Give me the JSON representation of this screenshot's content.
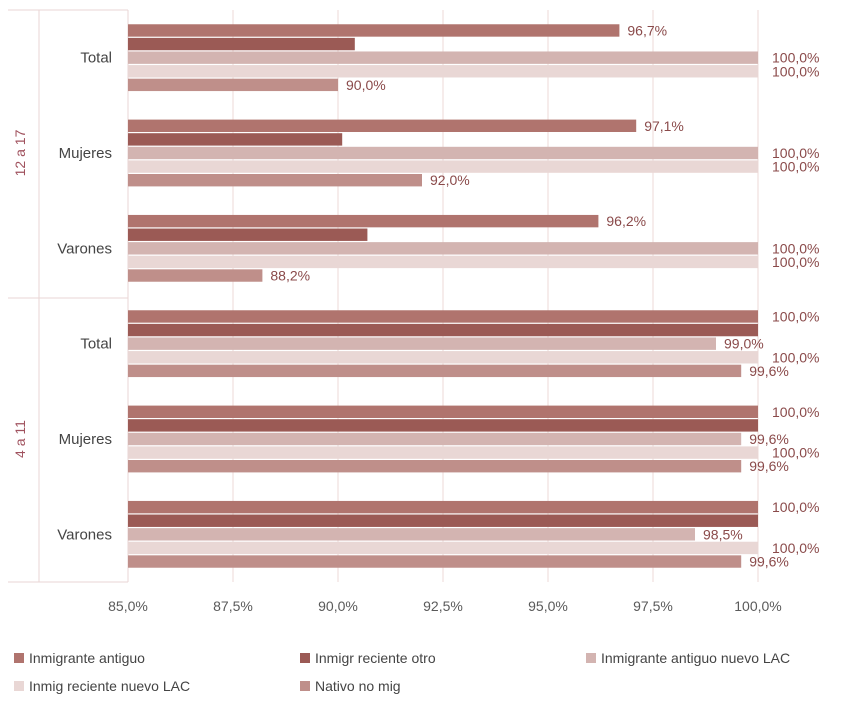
{
  "chart_data": {
    "type": "bar",
    "orientation": "horizontal",
    "groups": [
      {
        "label": "12 a 17",
        "categories": [
          "Total",
          "Mujeres",
          "Varones"
        ]
      },
      {
        "label": "4 a 11",
        "categories": [
          "Total",
          "Mujeres",
          "Varones"
        ]
      }
    ],
    "categories": [
      "Total",
      "Mujeres",
      "Varones",
      "Total",
      "Mujeres",
      "Varones"
    ],
    "series": [
      {
        "name": "Inmigrante antiguo",
        "color": "#b0746e",
        "values": [
          96.7,
          97.1,
          96.2,
          100.0,
          100.0,
          100.0
        ],
        "labels": [
          "96,7%",
          "97,1%",
          "96,2%",
          "100,0%",
          "100,0%",
          "100,0%"
        ]
      },
      {
        "name": "Inmigr reciente otro",
        "color": "#9b5a55",
        "values": [
          90.4,
          90.1,
          90.7,
          100.0,
          100.0,
          100.0
        ],
        "labels": [
          "",
          "",
          "",
          "",
          "",
          ""
        ]
      },
      {
        "name": "Inmigrante antiguo nuevo LAC",
        "color": "#d3b4b1",
        "values": [
          100.0,
          100.0,
          100.0,
          99.0,
          99.6,
          98.5
        ],
        "labels": [
          "100,0%",
          "100,0%",
          "100,0%",
          "99,0%",
          "99,6%",
          "98,5%"
        ]
      },
      {
        "name": "Inmig reciente nuevo LAC",
        "color": "#e9d7d5",
        "values": [
          100.0,
          100.0,
          100.0,
          100.0,
          100.0,
          100.0
        ],
        "labels": [
          "100,0%",
          "100,0%",
          "100,0%",
          "100,0%",
          "100,0%",
          "100,0%"
        ]
      },
      {
        "name": "Nativo no mig",
        "color": "#bf8f8a",
        "values": [
          90.0,
          92.0,
          88.2,
          99.6,
          99.6,
          99.6
        ],
        "labels": [
          "90,0%",
          "92,0%",
          "88,2%",
          "99,6%",
          "99,6%",
          "99,6%"
        ]
      }
    ],
    "xlim": [
      85.0,
      100.0
    ],
    "xticks": [
      85.0,
      87.5,
      90.0,
      92.5,
      95.0,
      97.5,
      100.0
    ],
    "xtick_labels": [
      "85,0%",
      "87,5%",
      "90,0%",
      "92,5%",
      "95,0%",
      "97,5%",
      "100,0%"
    ],
    "grid": true,
    "legend_position": "bottom",
    "title": "",
    "xlabel": "",
    "ylabel": ""
  }
}
